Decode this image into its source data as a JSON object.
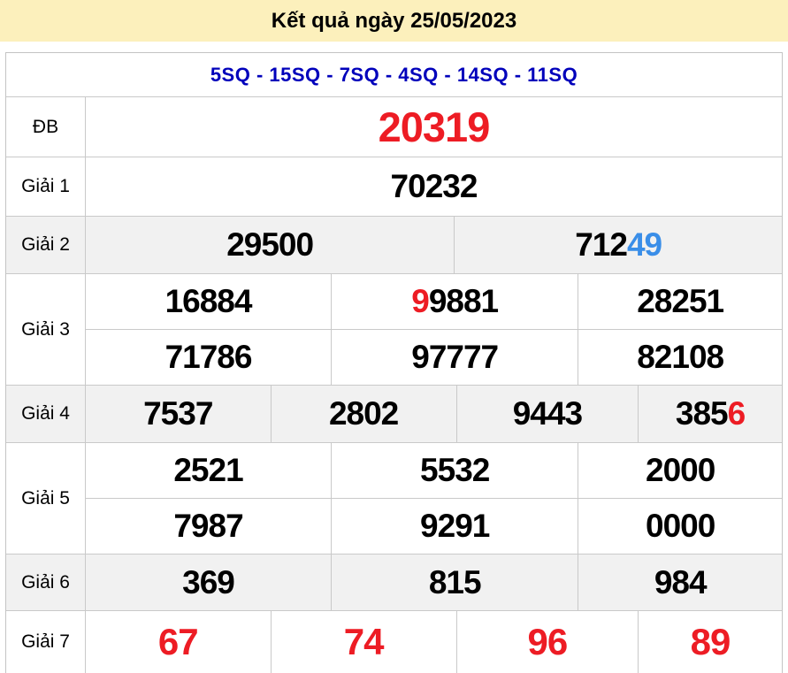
{
  "banner": {
    "title": "Kết quả ngày 25/05/2023",
    "bg": "#FCF0BC"
  },
  "station_line": "5SQ - 15SQ - 7SQ - 4SQ - 14SQ - 11SQ",
  "colors": {
    "banner_bg": "#FCF0BC",
    "station_blue": "#0000BB",
    "highlight_red": "#ED1C24",
    "highlight_blue": "#3A8EE8",
    "number_black": "#000000",
    "alt_row_bg": "#F1F1F1",
    "border": "#C9C9C9"
  },
  "prizes": [
    {
      "label": "ĐB",
      "cells": [
        {
          "parts": [
            {
              "t": "20319",
              "c": "#ED1C24"
            }
          ]
        }
      ]
    },
    {
      "label": "Giải 1",
      "cells": [
        {
          "parts": [
            {
              "t": "70232",
              "c": "#000000"
            }
          ]
        }
      ]
    },
    {
      "label": "Giải 2",
      "cells": [
        {
          "parts": [
            {
              "t": "29500",
              "c": "#000000"
            }
          ]
        },
        {
          "parts": [
            {
              "t": "712",
              "c": "#000000"
            },
            {
              "t": "49",
              "c": "#3A8EE8"
            }
          ]
        }
      ]
    },
    {
      "label": "Giải 3",
      "cells": [
        {
          "parts": [
            {
              "t": "16884",
              "c": "#000000"
            }
          ]
        },
        {
          "parts": [
            {
              "t": "9",
              "c": "#ED1C24"
            },
            {
              "t": "9881",
              "c": "#000000"
            }
          ]
        },
        {
          "parts": [
            {
              "t": "28251",
              "c": "#000000"
            }
          ]
        },
        {
          "parts": [
            {
              "t": "71786",
              "c": "#000000"
            }
          ]
        },
        {
          "parts": [
            {
              "t": "97777",
              "c": "#000000"
            }
          ]
        },
        {
          "parts": [
            {
              "t": "82108",
              "c": "#000000"
            }
          ]
        }
      ]
    },
    {
      "label": "Giải 4",
      "cells": [
        {
          "parts": [
            {
              "t": "7537",
              "c": "#000000"
            }
          ]
        },
        {
          "parts": [
            {
              "t": "2802",
              "c": "#000000"
            }
          ]
        },
        {
          "parts": [
            {
              "t": "9443",
              "c": "#000000"
            }
          ]
        },
        {
          "parts": [
            {
              "t": "385",
              "c": "#000000"
            },
            {
              "t": "6",
              "c": "#ED1C24"
            }
          ]
        }
      ]
    },
    {
      "label": "Giải 5",
      "cells": [
        {
          "parts": [
            {
              "t": "2521",
              "c": "#000000"
            }
          ]
        },
        {
          "parts": [
            {
              "t": "5532",
              "c": "#000000"
            }
          ]
        },
        {
          "parts": [
            {
              "t": "2000",
              "c": "#000000"
            }
          ]
        },
        {
          "parts": [
            {
              "t": "7987",
              "c": "#000000"
            }
          ]
        },
        {
          "parts": [
            {
              "t": "9291",
              "c": "#000000"
            }
          ]
        },
        {
          "parts": [
            {
              "t": "0000",
              "c": "#000000"
            }
          ]
        }
      ]
    },
    {
      "label": "Giải 6",
      "cells": [
        {
          "parts": [
            {
              "t": "369",
              "c": "#000000"
            }
          ]
        },
        {
          "parts": [
            {
              "t": "815",
              "c": "#000000"
            }
          ]
        },
        {
          "parts": [
            {
              "t": "984",
              "c": "#000000"
            }
          ]
        }
      ]
    },
    {
      "label": "Giải 7",
      "cells": [
        {
          "parts": [
            {
              "t": "67",
              "c": "#ED1C24"
            }
          ]
        },
        {
          "parts": [
            {
              "t": "74",
              "c": "#ED1C24"
            }
          ]
        },
        {
          "parts": [
            {
              "t": "96",
              "c": "#ED1C24"
            }
          ]
        },
        {
          "parts": [
            {
              "t": "89",
              "c": "#ED1C24"
            }
          ]
        }
      ]
    }
  ]
}
